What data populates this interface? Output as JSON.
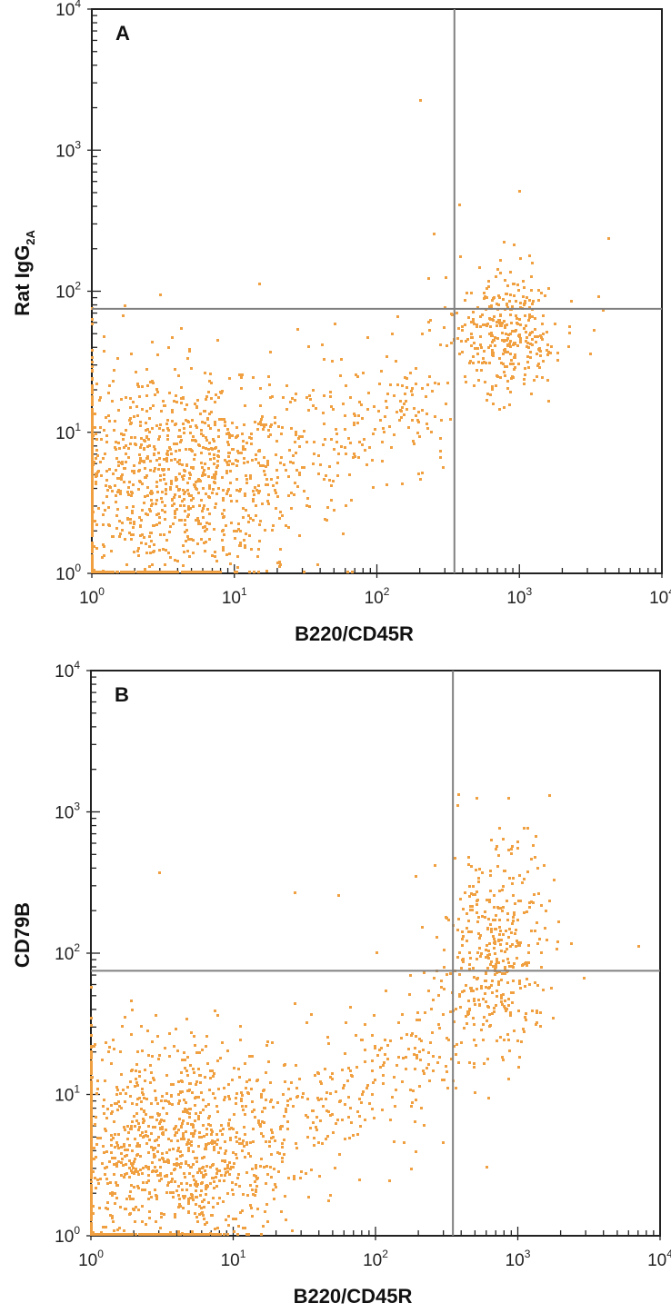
{
  "chart_data": [
    {
      "type": "scatter",
      "panel_label": "A",
      "xlabel": "B220/CD45R",
      "ylabel": "Rat IgG",
      "ylabel_subscript": "2A",
      "x_scale": "log",
      "y_scale": "log",
      "xlim": [
        1,
        10000
      ],
      "ylim": [
        1,
        10000
      ],
      "tick_labels": [
        {
          "base": "10",
          "exp": "0",
          "value": 1
        },
        {
          "base": "10",
          "exp": "1",
          "value": 10
        },
        {
          "base": "10",
          "exp": "2",
          "value": 100
        },
        {
          "base": "10",
          "exp": "3",
          "value": 1000
        },
        {
          "base": "10",
          "exp": "4",
          "value": 10000
        }
      ],
      "quadrant_gate": {
        "x": 350,
        "y": 75
      },
      "color": "#f0a040",
      "populations": [
        {
          "name_hint": "negative",
          "x_center": 3,
          "y_center": 5,
          "x_spread": 0.45,
          "y_spread": 0.4
        },
        {
          "name_hint": "transition",
          "x_center": 80,
          "y_center": 12,
          "x_spread": 0.5,
          "y_spread": 0.35
        },
        {
          "name_hint": "positive",
          "x_center": 800,
          "y_center": 50,
          "x_spread": 0.18,
          "y_spread": 0.22
        }
      ],
      "outliers": [
        [
          200,
          2200
        ],
        [
          1000,
          500
        ],
        [
          380,
          400
        ],
        [
          250,
          250
        ],
        [
          4200,
          230
        ],
        [
          15,
          110
        ],
        [
          3600,
          90
        ],
        [
          230,
          120
        ]
      ]
    },
    {
      "type": "scatter",
      "panel_label": "B",
      "xlabel": "B220/CD45R",
      "ylabel": "CD79B",
      "ylabel_subscript": "",
      "x_scale": "log",
      "y_scale": "log",
      "xlim": [
        1,
        10000
      ],
      "ylim": [
        1,
        10000
      ],
      "tick_labels": [
        {
          "base": "10",
          "exp": "0",
          "value": 1
        },
        {
          "base": "10",
          "exp": "1",
          "value": 10
        },
        {
          "base": "10",
          "exp": "2",
          "value": 100
        },
        {
          "base": "10",
          "exp": "3",
          "value": 1000
        },
        {
          "base": "10",
          "exp": "4",
          "value": 10000
        }
      ],
      "quadrant_gate": {
        "x": 350,
        "y": 75
      },
      "color": "#f0a040",
      "populations": [
        {
          "name_hint": "negative",
          "x_center": 3,
          "y_center": 4,
          "x_spread": 0.45,
          "y_spread": 0.4
        },
        {
          "name_hint": "transition",
          "x_center": 80,
          "y_center": 10,
          "x_spread": 0.5,
          "y_spread": 0.4
        },
        {
          "name_hint": "positive",
          "x_center": 700,
          "y_center": 100,
          "x_spread": 0.2,
          "y_spread": 0.4
        }
      ],
      "outliers": [
        [
          380,
          1300
        ],
        [
          1100,
          750
        ],
        [
          3,
          360
        ],
        [
          27,
          260
        ],
        [
          55,
          250
        ],
        [
          190,
          340
        ],
        [
          7000,
          110
        ],
        [
          2900,
          65
        ],
        [
          600,
          3
        ]
      ]
    }
  ]
}
